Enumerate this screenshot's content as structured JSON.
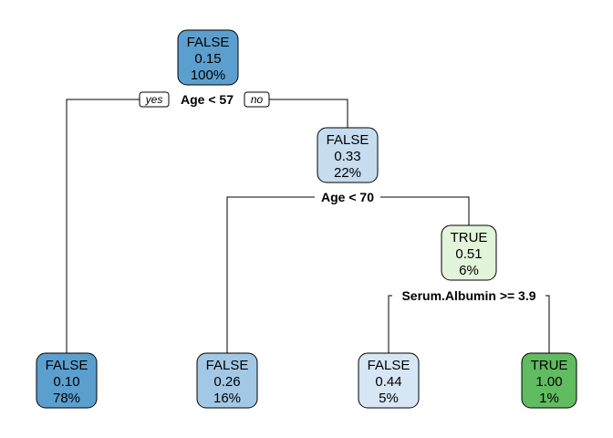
{
  "tree": {
    "nodes": [
      {
        "id": "root",
        "class": "FALSE",
        "prob": "0.15",
        "pct": "100%",
        "fill": "#5b9fcf"
      },
      {
        "id": "n3",
        "class": "FALSE",
        "prob": "0.33",
        "pct": "22%",
        "fill": "#c6dcef"
      },
      {
        "id": "n7",
        "class": "TRUE",
        "prob": "0.51",
        "pct": "6%",
        "fill": "#e2f4da"
      },
      {
        "id": "leaf2",
        "class": "FALSE",
        "prob": "0.10",
        "pct": "78%",
        "fill": "#5b9fcf"
      },
      {
        "id": "leaf6",
        "class": "FALSE",
        "prob": "0.26",
        "pct": "16%",
        "fill": "#a3c8e5"
      },
      {
        "id": "leaf14",
        "class": "FALSE",
        "prob": "0.44",
        "pct": "5%",
        "fill": "#d6e6f4"
      },
      {
        "id": "leaf15",
        "class": "TRUE",
        "prob": "1.00",
        "pct": "1%",
        "fill": "#61bb60"
      }
    ],
    "splits": [
      {
        "id": "split-root",
        "label": "Age < 57"
      },
      {
        "id": "split-n3",
        "label": "Age < 70"
      },
      {
        "id": "split-n7",
        "label": "Serum.Albumin >= 3.9"
      }
    ],
    "yes_label": "yes",
    "no_label": "no"
  }
}
